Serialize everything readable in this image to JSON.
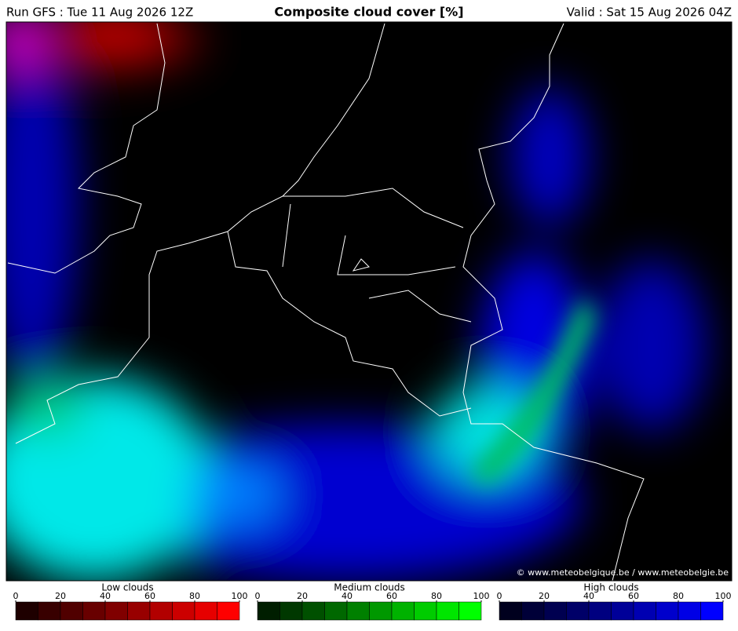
{
  "header": {
    "left": "Run GFS : Tue 11 Aug 2026 12Z",
    "title": "Composite cloud cover [%]",
    "right": "Valid : Sat 15 Aug 2026 04Z"
  },
  "map": {
    "credit": "© www.meteobelgique.be / www.meteobelgie.be"
  },
  "legends": [
    {
      "title": "Low clouds",
      "ticks": [
        0,
        20,
        40,
        60,
        80,
        100
      ],
      "colors": [
        "#1e0000",
        "#380000",
        "#500000",
        "#680000",
        "#800000",
        "#980000",
        "#b20000",
        "#cc0000",
        "#e60000",
        "#ff0000"
      ]
    },
    {
      "title": "Medium clouds",
      "ticks": [
        0,
        20,
        40,
        60,
        80,
        100
      ],
      "colors": [
        "#001e00",
        "#003800",
        "#005000",
        "#006800",
        "#008000",
        "#009800",
        "#00b200",
        "#00cc00",
        "#00e600",
        "#00ff00"
      ]
    },
    {
      "title": "High clouds",
      "ticks": [
        0,
        20,
        40,
        60,
        80,
        100
      ],
      "colors": [
        "#00001e",
        "#000038",
        "#000050",
        "#000068",
        "#000080",
        "#000098",
        "#0000b2",
        "#0000cc",
        "#0000e6",
        "#0000ff"
      ]
    }
  ]
}
